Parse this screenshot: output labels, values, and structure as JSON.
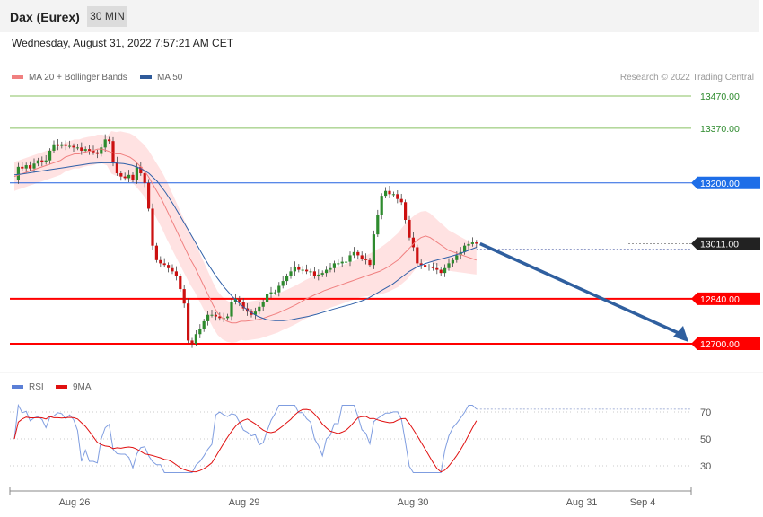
{
  "header": {
    "title": "Dax (Eurex)",
    "interval": "30 MIN",
    "datetime": "Wednesday, August 31, 2022 7:57:21 AM CET"
  },
  "legend": {
    "ma20": "MA 20 + Bollinger Bands",
    "ma50": "MA 50",
    "credit": "Research © 2022 Trading Central",
    "rsi": "RSI",
    "rsi_ma": "9MA"
  },
  "colors": {
    "bull": "#2e8b2e",
    "bear": "#cc1111",
    "ma20": "#f08080",
    "ma50": "#3060a8",
    "band": "#ffd8d8",
    "support": "#ff0000",
    "pivot": "#2060e0",
    "resistance": "#88c060",
    "arrow": "#2f5f9f",
    "last": "#222222"
  },
  "chart_data": [
    {
      "type": "candlestick",
      "ylim": [
        12650,
        13530
      ],
      "x_ticks": [
        "Aug 26",
        "Aug 29",
        "Aug 30",
        "Aug 31",
        "Sep 4"
      ],
      "levels": [
        {
          "value": 13470,
          "label": "13470.00",
          "kind": "resistance"
        },
        {
          "value": 13370,
          "label": "13370.00",
          "kind": "resistance"
        },
        {
          "value": 13200,
          "label": "13200.00",
          "kind": "pivot"
        },
        {
          "value": 13011,
          "label": "13011.00",
          "kind": "last"
        },
        {
          "value": 12840,
          "label": "12840.00",
          "kind": "support"
        },
        {
          "value": 12700,
          "label": "12700.00",
          "kind": "support"
        }
      ],
      "close": [
        13210,
        13250,
        13245,
        13255,
        13245,
        13260,
        13270,
        13265,
        13270,
        13300,
        13320,
        13315,
        13320,
        13315,
        13315,
        13310,
        13310,
        13300,
        13305,
        13300,
        13295,
        13290,
        13310,
        13335,
        13330,
        13265,
        13230,
        13220,
        13215,
        13225,
        13210,
        13250,
        13230,
        13200,
        13120,
        13005,
        12960,
        12950,
        12945,
        12935,
        12925,
        12910,
        12870,
        12825,
        12710,
        12700,
        12730,
        12745,
        12770,
        12790,
        12790,
        12785,
        12780,
        12780,
        12785,
        12830,
        12840,
        12830,
        12810,
        12800,
        12790,
        12800,
        12815,
        12830,
        12855,
        12860,
        12860,
        12880,
        12895,
        12910,
        12925,
        12940,
        12930,
        12930,
        12925,
        12925,
        12910,
        12915,
        12920,
        12930,
        12935,
        12950,
        12950,
        12955,
        12955,
        12975,
        12985,
        12975,
        12965,
        12960,
        12945,
        13040,
        13100,
        13160,
        13175,
        13165,
        13165,
        13150,
        13140,
        13085,
        13030,
        13000,
        12950,
        12945,
        12940,
        12940,
        12935,
        12930,
        12920,
        12935,
        12950,
        12960,
        12975,
        12985,
        13005,
        13010,
        13015,
        13011
      ],
      "ma20": [
        13220,
        13225,
        13230,
        13235,
        13240,
        13245,
        13250,
        13255,
        13260,
        13265,
        13270,
        13280,
        13285,
        13290,
        13290,
        13295,
        13298,
        13300,
        13305,
        13305,
        13300,
        13295,
        13290,
        13290,
        13285,
        13280,
        13270,
        13255,
        13240,
        13220,
        13195,
        13170,
        13145,
        13115,
        13085,
        13055,
        13025,
        12995,
        12965,
        12940,
        12910,
        12880,
        12850,
        12820,
        12795,
        12780,
        12770,
        12765,
        12765,
        12770,
        12770,
        12772,
        12774,
        12776,
        12780,
        12785,
        12790,
        12795,
        12802,
        12808,
        12815,
        12822,
        12830,
        12838,
        12845,
        12852,
        12858,
        12865,
        12870,
        12875,
        12880,
        12885,
        12890,
        12895,
        12900,
        12905,
        12910,
        12915,
        12920,
        12925,
        12932,
        12940,
        12950,
        12960,
        12975,
        12990,
        13005,
        13020,
        13030,
        13035,
        13030,
        13020,
        13010,
        13000,
        12990,
        12985,
        12980,
        12975,
        12970,
        12965,
        12960
      ],
      "ma50": [
        13225,
        13228,
        13232,
        13236,
        13240,
        13244,
        13248,
        13252,
        13256,
        13260,
        13262,
        13263,
        13262,
        13260,
        13255,
        13245,
        13230,
        13205,
        13170,
        13130,
        13085,
        13040,
        12995,
        12950,
        12910,
        12875,
        12845,
        12820,
        12800,
        12785,
        12775,
        12772,
        12772,
        12775,
        12780,
        12785,
        12792,
        12800,
        12808,
        12815,
        12822,
        12830,
        12840,
        12855,
        12870,
        12885,
        12905,
        12925,
        12940,
        12950,
        12958,
        12965,
        12972,
        12980,
        12990,
        13000
      ]
    },
    {
      "type": "line",
      "name": "RSI",
      "ylim": [
        10,
        90
      ],
      "y_ticks": [
        70,
        50,
        30
      ]
    }
  ]
}
